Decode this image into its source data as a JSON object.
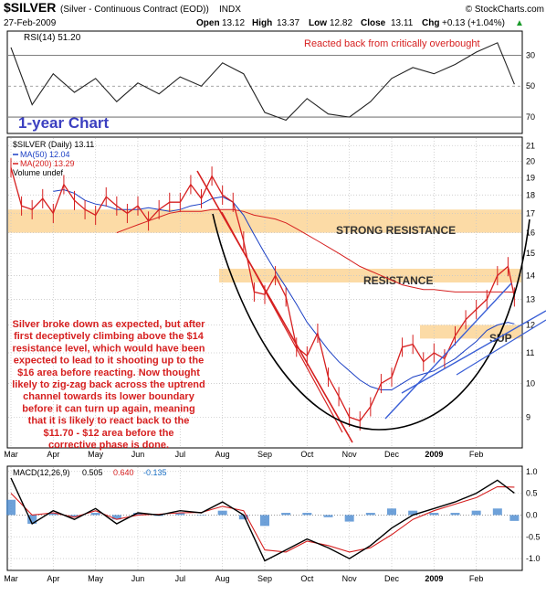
{
  "header": {
    "symbol": "$SILVER",
    "description": "(Silver - Continuous Contract (EOD))",
    "exchange": "INDX",
    "source": "© StockCharts.com",
    "date": "27-Feb-2009",
    "open_label": "Open",
    "open": "13.12",
    "high_label": "High",
    "high": "13.37",
    "low_label": "Low",
    "low": "12.82",
    "close_label": "Close",
    "close": "13.11",
    "chg_label": "Chg",
    "chg": "+0.13 (+1.04%)",
    "chg_arrow": "▲"
  },
  "rsi_panel": {
    "legend": "RSI(14) 51.20",
    "annotation": "Reacted back from critically overbought",
    "levels": [
      "70",
      "50",
      "30"
    ],
    "overbought": 70,
    "oversold": 30
  },
  "price_panel": {
    "chart_label": "1-year Chart",
    "legend_price": "$SILVER (Daily) 13.11",
    "legend_ma50": "MA(50) 12.04",
    "legend_ma200": "MA(200) 13.29",
    "legend_volume": "Volume undef",
    "band_strong_resistance": "STRONG RESISTANCE",
    "band_resistance": "RESISTANCE",
    "band_support": "SUP",
    "commentary": [
      "Silver broke down as expected, but after",
      "first deceptively climbing above the $14",
      "resistance level, which would have been",
      "expected to lead to it shooting up to the",
      "$16 area before reacting. Now thought",
      "likely to zig-zag back across the uptrend",
      "channel towards its lower boundary",
      "before it can turn up again, meaning",
      "that it is likely to react back to the",
      "$11.70 - $12 area before the",
      "corrective phase is done."
    ]
  },
  "macd_panel": {
    "label": "MACD(12,26,9)",
    "macd": "0.505",
    "signal": "0.640",
    "hist": "-0.135"
  },
  "colors": {
    "price": "#d62020",
    "ma50": "#1a3fc4",
    "ma200": "#d62020",
    "band": "#fbd596",
    "channel": "#3a5fd6",
    "commentary": "#d62020",
    "label_blue": "#3b3fc0",
    "rsi": "#222222"
  },
  "chart_data": [
    {
      "type": "line",
      "title": "$SILVER (Daily) 13.11",
      "months": [
        "Mar",
        "Apr",
        "May",
        "Jun",
        "Jul",
        "Aug",
        "Sep",
        "Oct",
        "Nov",
        "Dec",
        "2009",
        "Feb"
      ],
      "yticks": [
        9,
        10,
        11,
        12,
        13,
        14,
        15,
        16,
        17,
        18,
        19,
        20,
        21
      ],
      "ylim": [
        8.2,
        21.5
      ],
      "log_scale": true,
      "grid": true,
      "x": [
        0,
        0.25,
        0.5,
        0.75,
        1,
        1.25,
        1.5,
        1.75,
        2,
        2.25,
        2.5,
        2.75,
        3,
        3.25,
        3.5,
        3.75,
        4,
        4.25,
        4.5,
        4.75,
        5,
        5.25,
        5.5,
        5.75,
        6,
        6.25,
        6.5,
        6.75,
        7,
        7.25,
        7.5,
        7.75,
        8,
        8.25,
        8.5,
        8.75,
        9,
        9.25,
        9.5,
        9.75,
        10,
        10.25,
        10.5,
        10.75,
        11,
        11.25,
        11.5,
        11.75,
        11.9
      ],
      "series": [
        {
          "name": "$SILVER",
          "values": [
            19.6,
            17.4,
            17.2,
            17.8,
            17.0,
            18.6,
            17.7,
            17.2,
            16.9,
            17.9,
            17.4,
            17.0,
            17.4,
            16.6,
            17.2,
            17.6,
            17.6,
            18.6,
            17.8,
            19.1,
            18.0,
            17.6,
            15.6,
            13.3,
            13.2,
            14.0,
            13.1,
            11.2,
            10.9,
            11.7,
            10.2,
            9.6,
            9.0,
            8.9,
            9.3,
            10.0,
            10.2,
            11.2,
            11.3,
            10.7,
            11.0,
            10.8,
            11.6,
            12.2,
            12.6,
            13.0,
            14.0,
            14.4,
            13.1
          ]
        },
        {
          "name": "MA(50)",
          "values": [
            null,
            null,
            null,
            null,
            18.2,
            18.3,
            18.1,
            17.7,
            17.5,
            17.4,
            17.2,
            17.2,
            17.2,
            17.3,
            17.2,
            17.1,
            17.2,
            17.4,
            17.5,
            17.8,
            17.9,
            17.6,
            16.9,
            15.9,
            15.0,
            14.2,
            13.5,
            12.8,
            12.1,
            11.6,
            11.1,
            10.7,
            10.4,
            10.1,
            9.9,
            9.8,
            9.8,
            10.0,
            10.2,
            10.3,
            10.4,
            10.6,
            10.8,
            11.1,
            11.4,
            11.8,
            12.0,
            12.1,
            12.04
          ]
        },
        {
          "name": "MA(200)",
          "values": [
            null,
            null,
            null,
            null,
            null,
            null,
            null,
            null,
            null,
            null,
            16.0,
            16.2,
            16.4,
            16.6,
            16.8,
            17.0,
            17.1,
            17.1,
            17.1,
            17.2,
            17.2,
            17.2,
            17.1,
            16.9,
            16.8,
            16.7,
            16.5,
            16.2,
            15.9,
            15.6,
            15.3,
            15.0,
            14.7,
            14.4,
            14.2,
            14.0,
            13.8,
            13.6,
            13.5,
            13.4,
            13.4,
            13.35,
            13.3,
            13.3,
            13.3,
            13.3,
            13.3,
            13.3,
            13.29
          ]
        }
      ]
    },
    {
      "type": "line",
      "title": "RSI(14) 51.20",
      "ylim": [
        20,
        85
      ],
      "yticks": [
        30,
        50,
        70
      ],
      "x": [
        0,
        0.5,
        1,
        1.5,
        2,
        2.5,
        3,
        3.5,
        4,
        4.5,
        5,
        5.5,
        6,
        6.5,
        7,
        7.5,
        8,
        8.5,
        9,
        9.5,
        10,
        10.5,
        11,
        11.5,
        11.9
      ],
      "series": [
        {
          "name": "RSI(14)",
          "values": [
            75,
            38,
            58,
            46,
            55,
            40,
            52,
            45,
            56,
            50,
            65,
            58,
            33,
            28,
            42,
            32,
            30,
            40,
            55,
            62,
            58,
            64,
            72,
            78,
            51.2
          ]
        }
      ]
    },
    {
      "type": "line",
      "title": "MACD(12,26,9) 0.505, 0.640, -0.135",
      "ylim": [
        -1.25,
        1.1
      ],
      "yticks": [
        -1.0,
        -0.5,
        0.0,
        0.5,
        1.0
      ],
      "x": [
        0,
        0.5,
        1,
        1.5,
        2,
        2.5,
        3,
        3.5,
        4,
        4.5,
        5,
        5.5,
        6,
        6.5,
        7,
        7.5,
        8,
        8.5,
        9,
        9.5,
        10,
        10.5,
        11,
        11.5,
        11.9
      ],
      "series": [
        {
          "name": "MACD",
          "values": [
            0.85,
            -0.2,
            0.1,
            -0.1,
            0.15,
            -0.2,
            0.05,
            0.0,
            0.1,
            0.05,
            0.3,
            0.0,
            -1.05,
            -0.8,
            -0.55,
            -0.75,
            -1.0,
            -0.7,
            -0.3,
            0.0,
            0.15,
            0.3,
            0.5,
            0.8,
            0.505
          ]
        },
        {
          "name": "Signal",
          "values": [
            0.5,
            0.0,
            0.05,
            -0.05,
            0.1,
            -0.1,
            0.0,
            0.02,
            0.05,
            0.06,
            0.2,
            0.1,
            -0.8,
            -0.85,
            -0.6,
            -0.7,
            -0.85,
            -0.75,
            -0.45,
            -0.1,
            0.1,
            0.25,
            0.4,
            0.65,
            0.64
          ]
        },
        {
          "name": "Histogram",
          "values": [
            0.35,
            -0.2,
            0.05,
            -0.05,
            0.05,
            -0.1,
            0.05,
            -0.02,
            0.05,
            -0.01,
            0.1,
            -0.1,
            -0.25,
            0.05,
            0.05,
            -0.05,
            -0.15,
            0.05,
            0.15,
            0.1,
            0.05,
            0.05,
            0.1,
            0.15,
            -0.135
          ]
        }
      ]
    }
  ]
}
